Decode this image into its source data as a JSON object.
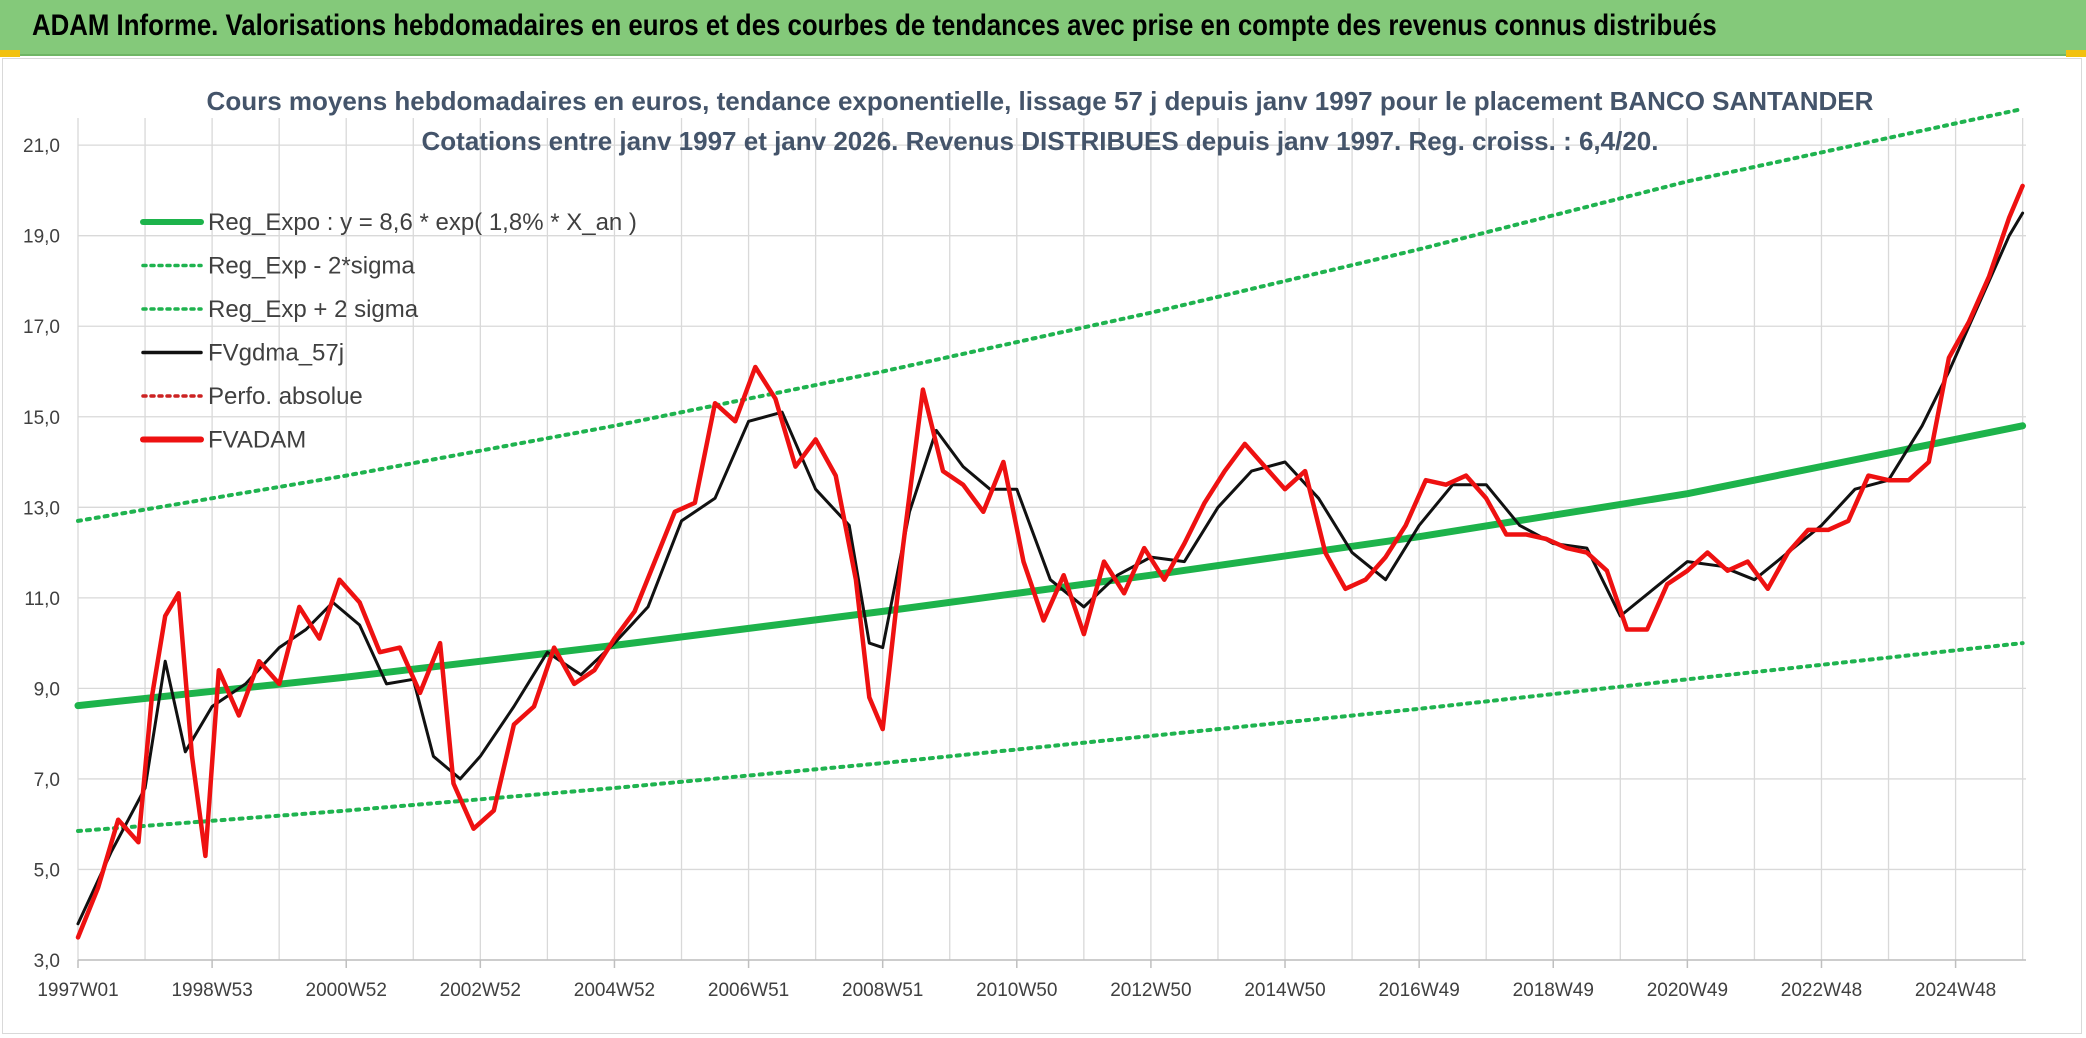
{
  "header": {
    "title": "ADAM Informe. Valorisations hebdomadaires en euros et des courbes de tendances avec prise en compte des revenus connus distribués"
  },
  "colors": {
    "banner": "#84c97a",
    "reg_green": "#1db34b",
    "dotted_green": "#1fb34f",
    "black_line": "#111111",
    "red_line": "#ee1111",
    "red_dotted": "#cc2222",
    "grid": "#d9d9d9",
    "title_text": "#44546a"
  },
  "chart_data": {
    "type": "line",
    "title_line1": "Cours moyens hebdomadaires en euros, tendance exponentielle, lissage 57 j depuis janv 1997 pour le placement BANCO SANTANDER",
    "title_line2": "Cotations entre janv 1997 et janv 2026. Revenus DISTRIBUES depuis janv 1997. Reg. croiss. : 6,4/20.",
    "xlabel": "",
    "ylabel": "",
    "ylim": [
      3,
      21.6
    ],
    "y_ticks": [
      3,
      5,
      7,
      9,
      11,
      13,
      15,
      17,
      19,
      21
    ],
    "y_tick_labels": [
      "3,0",
      "5,0",
      "7,0",
      "9,0",
      "11,0",
      "13,0",
      "15,0",
      "17,0",
      "19,0",
      "21,0"
    ],
    "x_range": [
      1997.0,
      2026.05
    ],
    "x_ticks": [
      1997.0,
      1999.0,
      2001.0,
      2003.0,
      2005.0,
      2007.0,
      2009.0,
      2011.0,
      2013.0,
      2015.0,
      2017.0,
      2019.0,
      2021.0,
      2023.0,
      2025.0
    ],
    "x_tick_labels": [
      "1997W01",
      "1998W53",
      "2000W52",
      "2002W52",
      "2004W52",
      "2006W51",
      "2008W51",
      "2010W50",
      "2012W50",
      "2014W50",
      "2016W49",
      "2018W49",
      "2020W49",
      "2022W48",
      "2024W48"
    ],
    "grid": true,
    "legend_position": "top-left",
    "legend": [
      {
        "label": "Reg_Expo : y = 8,6 * exp( 1,8% *  X_an )",
        "style": "thick-solid",
        "color": "#1db34b"
      },
      {
        "label": "Reg_Exp - 2*sigma",
        "style": "dotted",
        "color": "#1fb34f"
      },
      {
        "label": "Reg_Exp + 2 sigma",
        "style": "dotted",
        "color": "#1fb34f"
      },
      {
        "label": "FVgdma_57j",
        "style": "solid",
        "color": "#111111"
      },
      {
        "label": "Perfo. absolue",
        "style": "dotted",
        "color": "#cc2222"
      },
      {
        "label": "FVADAM",
        "style": "thick-solid",
        "color": "#ee1111"
      }
    ],
    "series": [
      {
        "name": "Reg_Expo",
        "x": [
          1997.0,
          2001.0,
          2005.0,
          2009.0,
          2013.0,
          2017.0,
          2021.0,
          2026.0
        ],
        "y": [
          8.62,
          9.25,
          9.95,
          10.7,
          11.5,
          12.35,
          13.3,
          14.8
        ]
      },
      {
        "name": "Reg_Exp - 2*sigma",
        "x": [
          1997.0,
          2001.0,
          2005.0,
          2009.0,
          2013.0,
          2017.0,
          2021.0,
          2026.0
        ],
        "y": [
          5.85,
          6.3,
          6.8,
          7.35,
          7.95,
          8.55,
          9.2,
          10.0
        ]
      },
      {
        "name": "Reg_Exp + 2 sigma",
        "x": [
          1997.0,
          2001.0,
          2005.0,
          2009.0,
          2013.0,
          2017.0,
          2021.0,
          2026.0
        ],
        "y": [
          12.7,
          13.7,
          14.8,
          16.0,
          17.3,
          18.7,
          20.2,
          21.8
        ]
      },
      {
        "name": "FVgdma_57j",
        "x": [
          1997.0,
          1997.5,
          1998.0,
          1998.3,
          1998.6,
          1999.0,
          1999.5,
          2000.0,
          2000.4,
          2000.8,
          2001.2,
          2001.6,
          2002.0,
          2002.3,
          2002.7,
          2003.0,
          2003.5,
          2004.0,
          2004.5,
          2005.0,
          2005.5,
          2006.0,
          2006.5,
          2007.0,
          2007.5,
          2008.0,
          2008.5,
          2008.8,
          2009.0,
          2009.4,
          2009.8,
          2010.2,
          2010.6,
          2011.0,
          2011.5,
          2012.0,
          2012.5,
          2013.0,
          2013.5,
          2014.0,
          2014.5,
          2015.0,
          2015.5,
          2016.0,
          2016.5,
          2017.0,
          2017.5,
          2018.0,
          2018.5,
          2019.0,
          2019.5,
          2020.0,
          2020.5,
          2021.0,
          2021.5,
          2022.0,
          2022.5,
          2023.0,
          2023.5,
          2024.0,
          2024.5,
          2024.9,
          2025.2,
          2025.5,
          2025.8,
          2026.0
        ],
        "y": [
          3.8,
          5.4,
          6.8,
          9.6,
          7.6,
          8.6,
          9.1,
          9.9,
          10.3,
          10.9,
          10.4,
          9.1,
          9.2,
          7.5,
          7.0,
          7.5,
          8.6,
          9.8,
          9.3,
          10.0,
          10.8,
          12.7,
          13.2,
          14.9,
          15.1,
          13.4,
          12.6,
          10.0,
          9.9,
          12.9,
          14.7,
          13.9,
          13.4,
          13.4,
          11.4,
          10.8,
          11.5,
          11.9,
          11.8,
          13.0,
          13.8,
          14.0,
          13.2,
          12.0,
          11.4,
          12.6,
          13.5,
          13.5,
          12.6,
          12.2,
          12.1,
          10.6,
          11.2,
          11.8,
          11.7,
          11.4,
          12.0,
          12.6,
          13.4,
          13.6,
          14.8,
          16.0,
          17.0,
          18.0,
          19.0,
          19.5
        ]
      },
      {
        "name": "FVADAM",
        "x": [
          1997.0,
          1997.3,
          1997.6,
          1997.9,
          1998.1,
          1998.3,
          1998.5,
          1998.7,
          1998.9,
          1999.1,
          1999.4,
          1999.7,
          2000.0,
          2000.3,
          2000.6,
          2000.9,
          2001.2,
          2001.5,
          2001.8,
          2002.1,
          2002.4,
          2002.6,
          2002.9,
          2003.2,
          2003.5,
          2003.8,
          2004.1,
          2004.4,
          2004.7,
          2005.0,
          2005.3,
          2005.6,
          2005.9,
          2006.2,
          2006.5,
          2006.8,
          2007.1,
          2007.4,
          2007.7,
          2008.0,
          2008.3,
          2008.6,
          2008.8,
          2009.0,
          2009.3,
          2009.6,
          2009.9,
          2010.2,
          2010.5,
          2010.8,
          2011.1,
          2011.4,
          2011.7,
          2012.0,
          2012.3,
          2012.6,
          2012.9,
          2013.2,
          2013.5,
          2013.8,
          2014.1,
          2014.4,
          2014.7,
          2015.0,
          2015.3,
          2015.6,
          2015.9,
          2016.2,
          2016.5,
          2016.8,
          2017.1,
          2017.4,
          2017.7,
          2018.0,
          2018.3,
          2018.6,
          2018.9,
          2019.2,
          2019.5,
          2019.8,
          2020.1,
          2020.4,
          2020.7,
          2021.0,
          2021.3,
          2021.6,
          2021.9,
          2022.2,
          2022.5,
          2022.8,
          2023.1,
          2023.4,
          2023.7,
          2024.0,
          2024.3,
          2024.6,
          2024.9,
          2025.2,
          2025.5,
          2025.8,
          2026.0
        ],
        "y": [
          3.5,
          4.6,
          6.1,
          5.6,
          8.8,
          10.6,
          11.1,
          7.5,
          5.3,
          9.4,
          8.4,
          9.6,
          9.1,
          10.8,
          10.1,
          11.4,
          10.9,
          9.8,
          9.9,
          8.9,
          10.0,
          6.9,
          5.9,
          6.3,
          8.2,
          8.6,
          9.9,
          9.1,
          9.4,
          10.1,
          10.7,
          11.8,
          12.9,
          13.1,
          15.3,
          14.9,
          16.1,
          15.4,
          13.9,
          14.5,
          13.7,
          11.4,
          8.8,
          8.1,
          12.1,
          15.6,
          13.8,
          13.5,
          12.9,
          14.0,
          11.8,
          10.5,
          11.5,
          10.2,
          11.8,
          11.1,
          12.1,
          11.4,
          12.2,
          13.1,
          13.8,
          14.4,
          13.9,
          13.4,
          13.8,
          12.0,
          11.2,
          11.4,
          11.9,
          12.6,
          13.6,
          13.5,
          13.7,
          13.2,
          12.4,
          12.4,
          12.3,
          12.1,
          12.0,
          11.6,
          10.3,
          10.3,
          11.3,
          11.6,
          12.0,
          11.6,
          11.8,
          11.2,
          12.0,
          12.5,
          12.5,
          12.7,
          13.7,
          13.6,
          13.6,
          14.0,
          16.3,
          17.1,
          18.1,
          19.4,
          20.1
        ]
      }
    ]
  }
}
